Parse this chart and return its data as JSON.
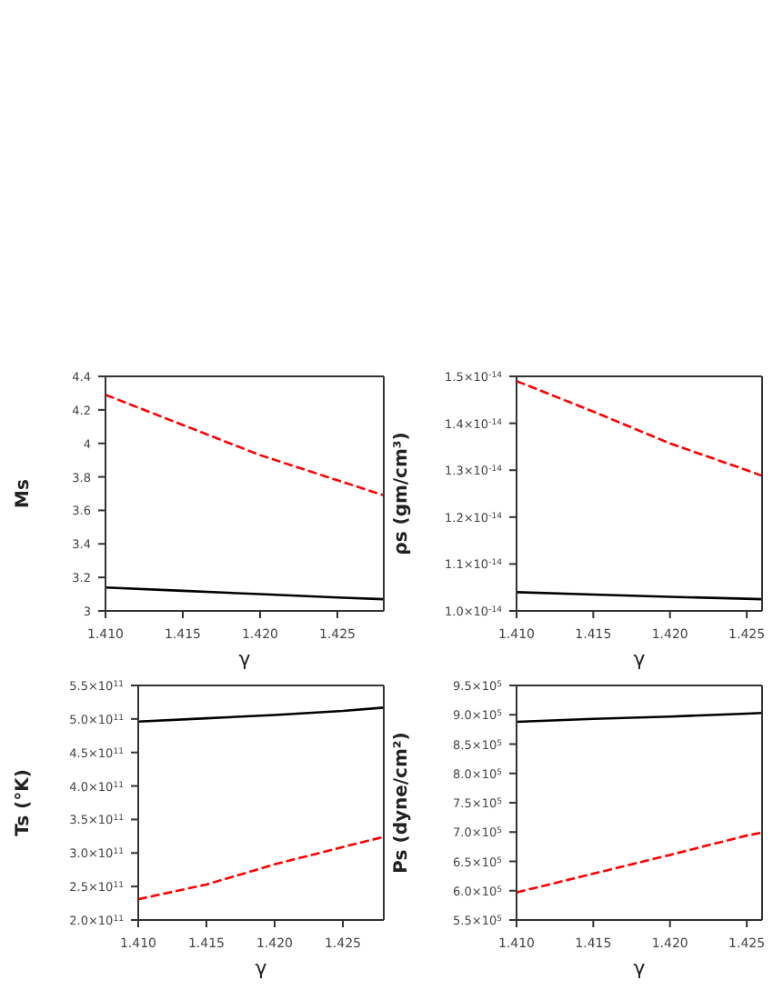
{
  "chart_data": [
    {
      "type": "line",
      "xlabel": "γ",
      "ylabel": "Ms",
      "x": [
        1.41,
        1.415,
        1.42,
        1.425,
        1.428
      ],
      "series": [
        {
          "color": "#ff0000",
          "line_style": "dashed",
          "values": [
            4.29,
            4.11,
            3.93,
            3.78,
            3.69
          ]
        },
        {
          "color": "#000000",
          "line_style": "solid",
          "values": [
            3.14,
            3.12,
            3.1,
            3.08,
            3.07
          ]
        }
      ],
      "xlim": [
        1.41,
        1.428
      ],
      "xticks": [
        {
          "value": 1.41,
          "label": "1.410"
        },
        {
          "value": 1.415,
          "label": "1.415"
        },
        {
          "value": 1.42,
          "label": "1.420"
        },
        {
          "value": 1.425,
          "label": "1.425"
        }
      ],
      "ylim": [
        3,
        4.4
      ],
      "yticks": [
        3,
        3.2,
        3.4,
        3.6,
        3.8,
        4,
        4.2,
        4.4
      ],
      "grid": false,
      "legend": false
    },
    {
      "type": "line",
      "xlabel": "γ",
      "ylabel": "ρs (gm/cm³)",
      "x": [
        1.41,
        1.415,
        1.42,
        1.425,
        1.426
      ],
      "series": [
        {
          "color": "#ff0000",
          "line_style": "dashed",
          "values": [
            1.49e-14,
            1.425e-14,
            1.357e-14,
            1.3e-14,
            1.288e-14
          ]
        },
        {
          "color": "#000000",
          "line_style": "solid",
          "values": [
            1.04e-14,
            1.035e-14,
            1.03e-14,
            1.026e-14,
            1.025e-14
          ]
        }
      ],
      "xlim": [
        1.41,
        1.426
      ],
      "xticks": [
        {
          "value": 1.41,
          "label": "1.410"
        },
        {
          "value": 1.415,
          "label": "1.415"
        },
        {
          "value": 1.42,
          "label": "1.420"
        },
        {
          "value": 1.425,
          "label": "1.425"
        }
      ],
      "ylim": [
        1e-14,
        1.5e-14
      ],
      "yticks": [
        {
          "value": 1e-14,
          "label": "1.0×10$^{-14}$"
        },
        {
          "value": 1.1e-14,
          "label": "1.1×10$^{-14}$"
        },
        {
          "value": 1.2e-14,
          "label": "1.2×10$^{-14}$"
        },
        {
          "value": 1.3e-14,
          "label": "1.3×10$^{-14}$"
        },
        {
          "value": 1.4e-14,
          "label": "1.4×10$^{-14}$"
        },
        {
          "value": 1.5e-14,
          "label": "1.5×10$^{-14}$"
        }
      ],
      "grid": false,
      "legend": false
    },
    {
      "type": "line",
      "xlabel": "γ",
      "ylabel": "Ts (°K)",
      "x": [
        1.41,
        1.415,
        1.42,
        1.425,
        1.428
      ],
      "series": [
        {
          "color": "#ff0000",
          "line_style": "dashed",
          "values": [
            231000000000.0,
            253000000000.0,
            283000000000.0,
            309000000000.0,
            324000000000.0
          ]
        },
        {
          "color": "#000000",
          "line_style": "solid",
          "values": [
            496000000000.0,
            501000000000.0,
            506000000000.0,
            512000000000.0,
            517000000000.0
          ]
        }
      ],
      "xlim": [
        1.41,
        1.428
      ],
      "xticks": [
        {
          "value": 1.41,
          "label": "1.410"
        },
        {
          "value": 1.415,
          "label": "1.415"
        },
        {
          "value": 1.42,
          "label": "1.420"
        },
        {
          "value": 1.425,
          "label": "1.425"
        }
      ],
      "ylim": [
        200000000000.0,
        550000000000.0
      ],
      "yticks": [
        {
          "value": 200000000000.0,
          "label": "2.0×10$^{11}$"
        },
        {
          "value": 250000000000.0,
          "label": "2.5×10$^{11}$"
        },
        {
          "value": 300000000000.0,
          "label": "3.0×10$^{11}$"
        },
        {
          "value": 350000000000.0,
          "label": "3.5×10$^{11}$"
        },
        {
          "value": 400000000000.0,
          "label": "4.0×10$^{11}$"
        },
        {
          "value": 450000000000.0,
          "label": "4.5×10$^{11}$"
        },
        {
          "value": 500000000000.0,
          "label": "5.0×10$^{11}$"
        },
        {
          "value": 550000000000.0,
          "label": "5.5×10$^{11}$"
        }
      ],
      "grid": false,
      "legend": false
    },
    {
      "type": "line",
      "xlabel": "γ",
      "ylabel": "Ps (dyne/cm²)",
      "x": [
        1.41,
        1.415,
        1.42,
        1.425,
        1.426
      ],
      "series": [
        {
          "color": "#ff0000",
          "line_style": "dashed",
          "values": [
            597000.0,
            629000.0,
            661000.0,
            694000.0,
            699000.0
          ]
        },
        {
          "color": "#000000",
          "line_style": "solid",
          "values": [
            888000.0,
            893000.0,
            897000.0,
            902000.0,
            903000.0
          ]
        }
      ],
      "xlim": [
        1.41,
        1.426
      ],
      "xticks": [
        {
          "value": 1.41,
          "label": "1.410"
        },
        {
          "value": 1.415,
          "label": "1.415"
        },
        {
          "value": 1.42,
          "label": "1.420"
        },
        {
          "value": 1.425,
          "label": "1.425"
        }
      ],
      "ylim": [
        550000.0,
        950000.0
      ],
      "yticks": [
        {
          "value": 550000.0,
          "label": "5.5×10$^{5}$"
        },
        {
          "value": 600000.0,
          "label": "6.0×10$^{5}$"
        },
        {
          "value": 650000.0,
          "label": "6.5×10$^{5}$"
        },
        {
          "value": 700000.0,
          "label": "7.0×10$^{5}$"
        },
        {
          "value": 750000.0,
          "label": "7.5×10$^{5}$"
        },
        {
          "value": 800000.0,
          "label": "8.0×10$^{5}$"
        },
        {
          "value": 850000.0,
          "label": "8.5×10$^{5}$"
        },
        {
          "value": 900000.0,
          "label": "9.0×10$^{5}$"
        },
        {
          "value": 950000.0,
          "label": "9.5×10$^{5}$"
        }
      ],
      "grid": false,
      "legend": false
    }
  ]
}
